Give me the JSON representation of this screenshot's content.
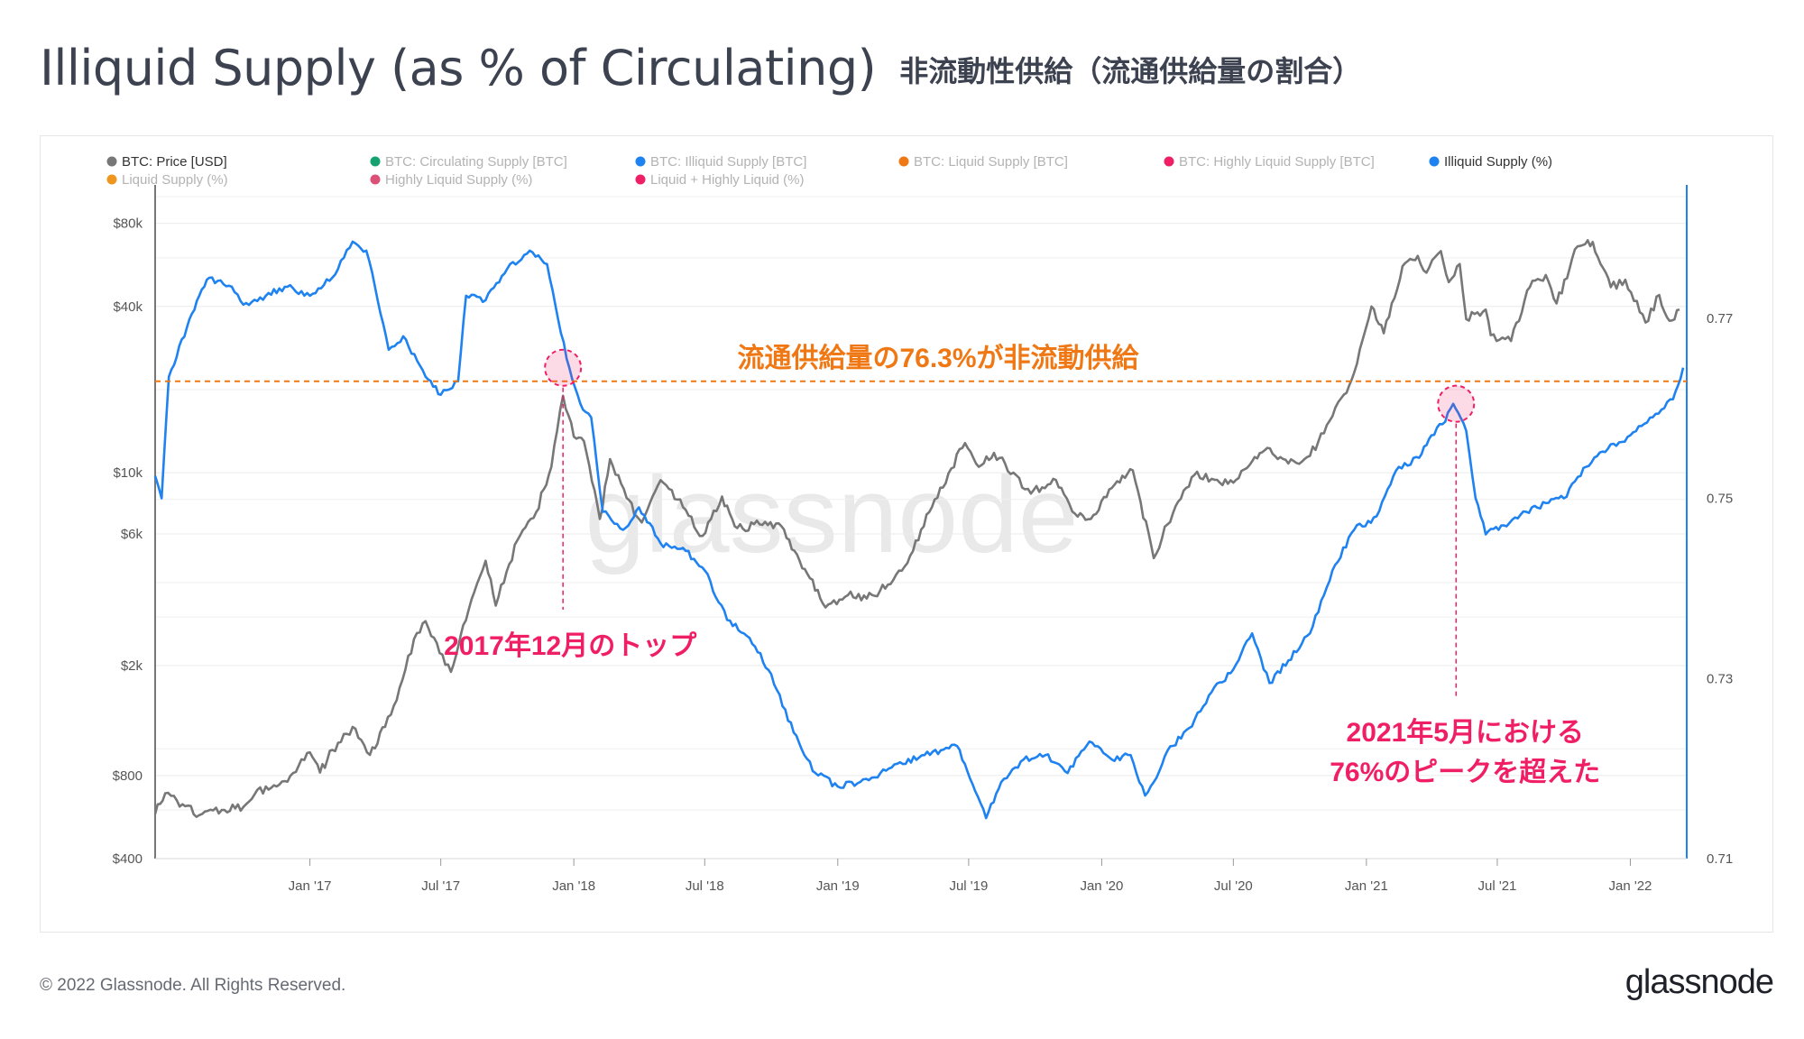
{
  "header": {
    "title": "Illiquid Supply (as % of Circulating)",
    "subtitle": "非流動性供給（流通供給量の割合）"
  },
  "footer": {
    "copyright": "© 2022 Glassnode. All Rights Reserved.",
    "logo": "glassnode"
  },
  "chart_data": {
    "type": "line",
    "watermark": "glassnode",
    "x_ticks": [
      "Jan '17",
      "Jul '17",
      "Jan '18",
      "Jul '18",
      "Jan '19",
      "Jul '19",
      "Jan '20",
      "Jul '20",
      "Jan '21",
      "Jul '21",
      "Jan '22"
    ],
    "x_tick_dates": [
      "2017-01-01",
      "2017-07-01",
      "2018-01-01",
      "2018-07-01",
      "2019-01-01",
      "2019-07-01",
      "2020-01-01",
      "2020-07-01",
      "2021-01-01",
      "2021-07-01",
      "2022-01-01"
    ],
    "x_range": [
      "2016-06-01",
      "2022-03-20"
    ],
    "y_left": {
      "scale": "log",
      "range": [
        400,
        100000
      ],
      "ticks": [
        80000,
        40000,
        10000,
        6000,
        2000,
        800,
        400
      ],
      "tick_labels": [
        "$80k",
        "$40k",
        "$10k",
        "$6k",
        "$2k",
        "$800",
        "$400"
      ]
    },
    "y_right": {
      "scale": "linear",
      "range": [
        0.71,
        0.7835
      ],
      "ticks": [
        0.77,
        0.75,
        0.73,
        0.71
      ],
      "tick_labels": [
        "0.77",
        "0.75",
        "0.73",
        "0.71"
      ]
    },
    "legend": [
      {
        "label": "BTC: Price [USD]",
        "color": "#777777",
        "active": true
      },
      {
        "label": "BTC: Circulating Supply [BTC]",
        "color": "#14a36e",
        "active": false
      },
      {
        "label": "BTC: Illiquid Supply [BTC]",
        "color": "#1e82f0",
        "active": false
      },
      {
        "label": "BTC: Liquid Supply [BTC]",
        "color": "#f07814",
        "active": false
      },
      {
        "label": "BTC: Highly Liquid Supply [BTC]",
        "color": "#f01e64",
        "active": false
      },
      {
        "label": "Illiquid Supply (%)",
        "color": "#1e82f0",
        "active": true
      },
      {
        "label": "Liquid Supply (%)",
        "color": "#f0961e",
        "active": false
      },
      {
        "label": "Highly Liquid Supply (%)",
        "color": "#dc5078",
        "active": false
      },
      {
        "label": "Liquid + Highly Liquid (%)",
        "color": "#f01e64",
        "active": false
      }
    ],
    "series": [
      {
        "name": "BTC: Price [USD]",
        "axis": "left",
        "color": "#777777",
        "points": [
          [
            "2016-06-01",
            580
          ],
          [
            "2016-06-15",
            690
          ],
          [
            "2016-07-01",
            650
          ],
          [
            "2016-08-01",
            575
          ],
          [
            "2016-09-01",
            600
          ],
          [
            "2016-10-01",
            615
          ],
          [
            "2016-11-01",
            730
          ],
          [
            "2016-12-01",
            760
          ],
          [
            "2017-01-01",
            970
          ],
          [
            "2017-01-15",
            820
          ],
          [
            "2017-02-01",
            990
          ],
          [
            "2017-03-01",
            1200
          ],
          [
            "2017-03-25",
            950
          ],
          [
            "2017-04-15",
            1200
          ],
          [
            "2017-05-01",
            1500
          ],
          [
            "2017-05-25",
            2500
          ],
          [
            "2017-06-10",
            2900
          ],
          [
            "2017-07-15",
            1900
          ],
          [
            "2017-08-01",
            2800
          ],
          [
            "2017-09-01",
            4800
          ],
          [
            "2017-09-15",
            3300
          ],
          [
            "2017-10-15",
            5700
          ],
          [
            "2017-11-10",
            7200
          ],
          [
            "2017-12-01",
            10500
          ],
          [
            "2017-12-17",
            19000
          ],
          [
            "2018-01-01",
            13500
          ],
          [
            "2018-01-15",
            13000
          ],
          [
            "2018-02-06",
            6800
          ],
          [
            "2018-02-20",
            11200
          ],
          [
            "2018-03-15",
            8100
          ],
          [
            "2018-04-05",
            6600
          ],
          [
            "2018-05-01",
            9400
          ],
          [
            "2018-06-01",
            7500
          ],
          [
            "2018-06-28",
            5900
          ],
          [
            "2018-07-25",
            8200
          ],
          [
            "2018-08-15",
            6300
          ],
          [
            "2018-09-15",
            6500
          ],
          [
            "2018-10-15",
            6400
          ],
          [
            "2018-11-20",
            4300
          ],
          [
            "2018-12-15",
            3250
          ],
          [
            "2019-01-15",
            3600
          ],
          [
            "2019-02-10",
            3500
          ],
          [
            "2019-03-15",
            3950
          ],
          [
            "2019-04-15",
            5200
          ],
          [
            "2019-05-15",
            8000
          ],
          [
            "2019-06-26",
            12800
          ],
          [
            "2019-07-15",
            10500
          ],
          [
            "2019-08-05",
            11800
          ],
          [
            "2019-09-01",
            10000
          ],
          [
            "2019-09-25",
            8400
          ],
          [
            "2019-10-26",
            9500
          ],
          [
            "2019-11-25",
            7100
          ],
          [
            "2019-12-17",
            6800
          ],
          [
            "2020-01-15",
            8800
          ],
          [
            "2020-02-13",
            10200
          ],
          [
            "2020-03-13",
            4900
          ],
          [
            "2020-04-01",
            6500
          ],
          [
            "2020-05-08",
            9800
          ],
          [
            "2020-06-01",
            9500
          ],
          [
            "2020-07-01",
            9200
          ],
          [
            "2020-07-27",
            11000
          ],
          [
            "2020-08-17",
            12300
          ],
          [
            "2020-09-15",
            10800
          ],
          [
            "2020-10-15",
            11500
          ],
          [
            "2020-11-15",
            16000
          ],
          [
            "2020-12-01",
            19200
          ],
          [
            "2020-12-15",
            23000
          ],
          [
            "2021-01-08",
            40000
          ],
          [
            "2021-01-25",
            32000
          ],
          [
            "2021-02-20",
            56000
          ],
          [
            "2021-03-13",
            61000
          ],
          [
            "2021-03-25",
            53000
          ],
          [
            "2021-04-14",
            63500
          ],
          [
            "2021-04-25",
            49000
          ],
          [
            "2021-05-10",
            57000
          ],
          [
            "2021-05-19",
            36000
          ],
          [
            "2021-06-15",
            39000
          ],
          [
            "2021-06-22",
            31500
          ],
          [
            "2021-07-20",
            30000
          ],
          [
            "2021-08-15",
            47000
          ],
          [
            "2021-09-06",
            52000
          ],
          [
            "2021-09-21",
            41000
          ],
          [
            "2021-10-20",
            66000
          ],
          [
            "2021-11-10",
            68500
          ],
          [
            "2021-12-05",
            47000
          ],
          [
            "2021-12-25",
            50000
          ],
          [
            "2022-01-22",
            35000
          ],
          [
            "2022-02-10",
            44000
          ],
          [
            "2022-02-24",
            35500
          ],
          [
            "2022-03-10",
            39000
          ]
        ]
      },
      {
        "name": "Illiquid Supply (%)",
        "axis": "right",
        "color": "#1e82f0",
        "points": [
          [
            "2016-06-01",
            0.7525
          ],
          [
            "2016-06-10",
            0.75
          ],
          [
            "2016-06-20",
            0.7635
          ],
          [
            "2016-07-15",
            0.769
          ],
          [
            "2016-08-01",
            0.7725
          ],
          [
            "2016-08-15",
            0.7745
          ],
          [
            "2016-09-15",
            0.7735
          ],
          [
            "2016-10-01",
            0.7715
          ],
          [
            "2016-11-01",
            0.7725
          ],
          [
            "2016-12-01",
            0.7735
          ],
          [
            "2017-01-01",
            0.7725
          ],
          [
            "2017-02-01",
            0.7745
          ],
          [
            "2017-03-01",
            0.7785
          ],
          [
            "2017-03-20",
            0.7775
          ],
          [
            "2017-04-01",
            0.7735
          ],
          [
            "2017-04-20",
            0.7665
          ],
          [
            "2017-05-10",
            0.768
          ],
          [
            "2017-06-10",
            0.7635
          ],
          [
            "2017-07-01",
            0.7615
          ],
          [
            "2017-07-25",
            0.763
          ],
          [
            "2017-08-05",
            0.7725
          ],
          [
            "2017-09-01",
            0.772
          ],
          [
            "2017-10-01",
            0.7755
          ],
          [
            "2017-11-01",
            0.7775
          ],
          [
            "2017-11-25",
            0.776
          ],
          [
            "2017-12-10",
            0.77
          ],
          [
            "2017-12-22",
            0.7655
          ],
          [
            "2018-01-10",
            0.7605
          ],
          [
            "2018-01-25",
            0.759
          ],
          [
            "2018-02-10",
            0.7485
          ],
          [
            "2018-03-10",
            0.7465
          ],
          [
            "2018-04-01",
            0.749
          ],
          [
            "2018-05-01",
            0.745
          ],
          [
            "2018-06-01",
            0.7445
          ],
          [
            "2018-07-01",
            0.742
          ],
          [
            "2018-08-01",
            0.7365
          ],
          [
            "2018-09-01",
            0.7345
          ],
          [
            "2018-10-01",
            0.7305
          ],
          [
            "2018-11-01",
            0.724
          ],
          [
            "2018-12-01",
            0.7195
          ],
          [
            "2019-01-01",
            0.718
          ],
          [
            "2019-02-01",
            0.7185
          ],
          [
            "2019-03-01",
            0.7195
          ],
          [
            "2019-04-01",
            0.7205
          ],
          [
            "2019-05-01",
            0.7215
          ],
          [
            "2019-06-15",
            0.7225
          ],
          [
            "2019-07-10",
            0.7175
          ],
          [
            "2019-07-25",
            0.7145
          ],
          [
            "2019-08-15",
            0.7185
          ],
          [
            "2019-09-15",
            0.721
          ],
          [
            "2019-10-15",
            0.7215
          ],
          [
            "2019-11-15",
            0.7195
          ],
          [
            "2019-12-15",
            0.723
          ],
          [
            "2020-01-15",
            0.721
          ],
          [
            "2020-02-10",
            0.7215
          ],
          [
            "2020-03-01",
            0.717
          ],
          [
            "2020-03-13",
            0.7185
          ],
          [
            "2020-04-01",
            0.722
          ],
          [
            "2020-05-01",
            0.7245
          ],
          [
            "2020-06-01",
            0.7285
          ],
          [
            "2020-07-01",
            0.731
          ],
          [
            "2020-07-27",
            0.735
          ],
          [
            "2020-08-20",
            0.7295
          ],
          [
            "2020-09-15",
            0.732
          ],
          [
            "2020-10-15",
            0.735
          ],
          [
            "2020-11-15",
            0.742
          ],
          [
            "2020-12-15",
            0.7465
          ],
          [
            "2021-01-15",
            0.748
          ],
          [
            "2021-02-15",
            0.7535
          ],
          [
            "2021-03-15",
            0.7545
          ],
          [
            "2021-04-01",
            0.757
          ],
          [
            "2021-04-20",
            0.7585
          ],
          [
            "2021-05-01",
            0.7605
          ],
          [
            "2021-05-19",
            0.7575
          ],
          [
            "2021-06-01",
            0.75
          ],
          [
            "2021-06-15",
            0.746
          ],
          [
            "2021-07-10",
            0.747
          ],
          [
            "2021-08-10",
            0.7485
          ],
          [
            "2021-09-10",
            0.7495
          ],
          [
            "2021-10-01",
            0.75
          ],
          [
            "2021-11-01",
            0.7535
          ],
          [
            "2021-12-01",
            0.7555
          ],
          [
            "2022-01-01",
            0.757
          ],
          [
            "2022-02-01",
            0.759
          ],
          [
            "2022-03-01",
            0.761
          ],
          [
            "2022-03-15",
            0.7645
          ]
        ]
      }
    ],
    "reference_line": {
      "value": 0.763,
      "axis": "right",
      "color": "#f07814",
      "label": "流通供給量の76.3%が非流動供給"
    },
    "annotations": [
      {
        "label": "2017年12月のトップ",
        "date": "2017-12-17",
        "value": 0.7645,
        "axis": "right",
        "color": "#f01e64"
      },
      {
        "label": "2021年5月における76%のピークを超えた",
        "label_lines": [
          "2021年5月における",
          "76%のピークを超えた"
        ],
        "date": "2021-05-05",
        "value": 0.7605,
        "axis": "right",
        "color": "#f01e64"
      }
    ]
  }
}
